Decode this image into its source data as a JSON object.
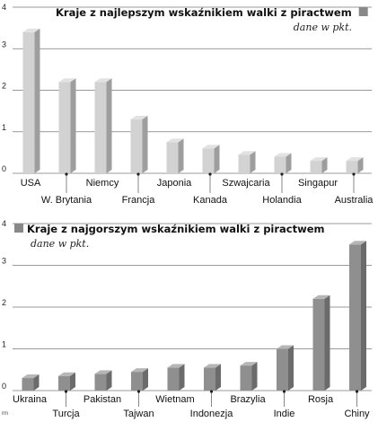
{
  "chart_data": [
    {
      "type": "bar",
      "title": "Kraje z najlepszym wskaźnikiem walki z piractwem",
      "subtitle": "dane w pkt.",
      "legend_color": "#888888",
      "bar_color": "#d2d2d2",
      "ylim": [
        0,
        4
      ],
      "yticks": [
        "0",
        "1",
        "2",
        "3",
        "4"
      ],
      "categories": [
        "USA",
        "W. Brytania",
        "Niemcy",
        "Francja",
        "Japonia",
        "Kanada",
        "Szwajcaria",
        "Holandia",
        "Singapur",
        "Australia"
      ],
      "values": [
        3.4,
        2.2,
        2.2,
        1.3,
        0.75,
        0.6,
        0.45,
        0.4,
        0.3,
        0.3
      ],
      "label_rows": [
        "top",
        "bottom",
        "top",
        "bottom",
        "top",
        "bottom",
        "top",
        "bottom",
        "top",
        "bottom"
      ]
    },
    {
      "type": "bar",
      "title": "Kraje z najgorszym wskaźnikiem walki z piractwem",
      "subtitle": "dane w pkt.",
      "legend_color": "#888888",
      "bar_color": "#8f8f8f",
      "ylim": [
        0,
        4
      ],
      "yticks": [
        "0",
        "1",
        "2",
        "3",
        "4"
      ],
      "categories": [
        "Ukraina",
        "Turcja",
        "Pakistan",
        "Tajwan",
        "Wietnam",
        "Indonezja",
        "Brazylia",
        "Indie",
        "Rosja",
        "Chiny"
      ],
      "values": [
        0.3,
        0.35,
        0.4,
        0.45,
        0.55,
        0.55,
        0.6,
        1.0,
        2.2,
        3.5
      ],
      "label_rows": [
        "top",
        "bottom",
        "top",
        "bottom",
        "top",
        "bottom",
        "top",
        "bottom",
        "top",
        "bottom"
      ]
    }
  ],
  "edge_text": "rm"
}
